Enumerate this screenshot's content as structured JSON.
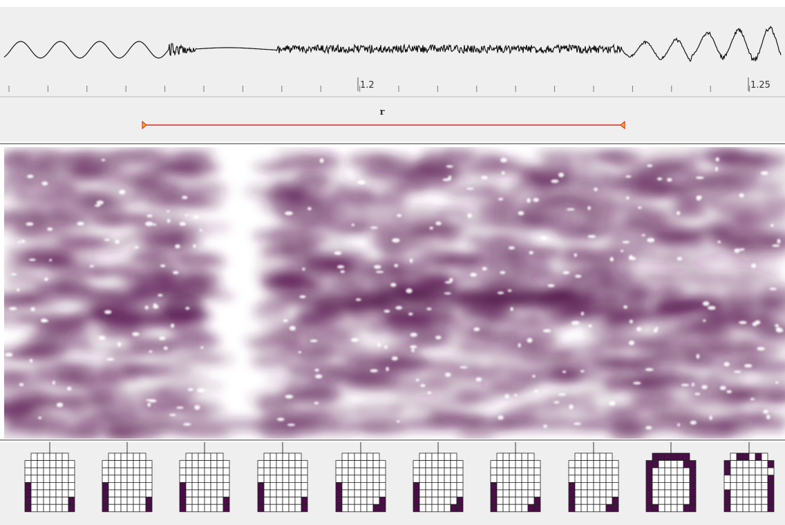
{
  "timeline": {
    "labels": [
      "1.2",
      "1.25"
    ]
  },
  "segment": {
    "label": "r"
  }
}
